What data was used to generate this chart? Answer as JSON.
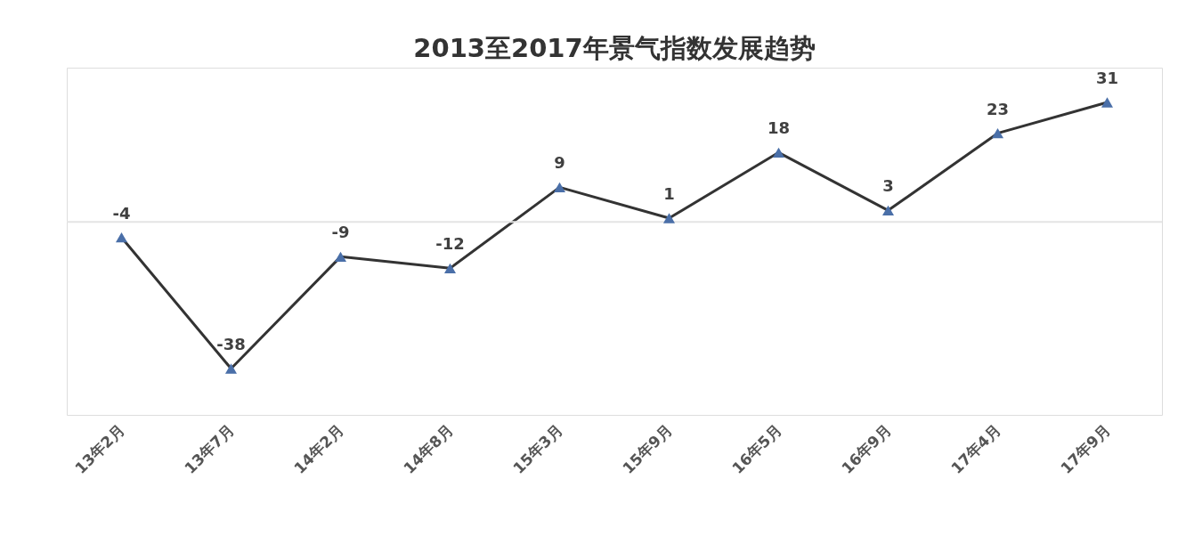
{
  "chart_data": {
    "type": "line",
    "title": "2013至2017年景气指数发展趋势",
    "categories": [
      "13年2月",
      "13年7月",
      "14年2月",
      "14年8月",
      "15年3月",
      "15年9月",
      "16年5月",
      "16年9月",
      "17年4月",
      "17年9月"
    ],
    "values": [
      -4,
      -38,
      -9,
      -12,
      9,
      1,
      18,
      3,
      23,
      31
    ],
    "color": "#333333",
    "colors": [
      "#4a6fa8",
      "#4a6fa8",
      "#4a6fa8",
      "#4a6fa8",
      "#4a6fa8",
      "#4a6fa8",
      "#4a6fa8",
      "#4a6fa8",
      "#4a6fa8",
      "#4a6fa8"
    ],
    "ylim": [
      -50,
      40
    ],
    "ref_lines": [
      {
        "axis": "y",
        "value": 0,
        "color": "#e4e4e4"
      }
    ],
    "data_labels": true,
    "marker": "triangle",
    "line_style": "solid",
    "grid": false,
    "tick_labels": "x"
  }
}
